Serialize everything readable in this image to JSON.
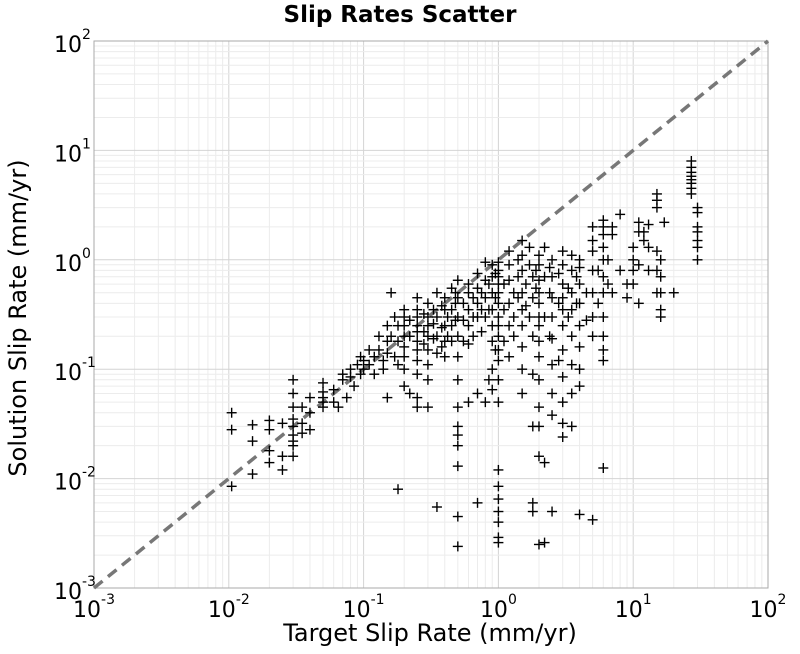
{
  "chart_data": {
    "type": "scatter",
    "title": "Slip Rates Scatter",
    "xlabel": "Target Slip Rate (mm/yr)",
    "ylabel": "Solution Slip Rate (mm/yr)",
    "x_scale": "log",
    "y_scale": "log",
    "xlim": [
      0.001,
      100
    ],
    "ylim": [
      0.001,
      100
    ],
    "grid": true,
    "marker": "plus",
    "marker_color": "#000000",
    "reference_line": {
      "style": "dashed",
      "color": "#777777",
      "from": [
        0.001,
        0.001
      ],
      "to": [
        100,
        100
      ]
    },
    "x_ticks": [
      {
        "base": "10",
        "exp": "-3"
      },
      {
        "base": "10",
        "exp": "-2"
      },
      {
        "base": "10",
        "exp": "-1"
      },
      {
        "base": "10",
        "exp": "0"
      },
      {
        "base": "10",
        "exp": "1"
      },
      {
        "base": "10",
        "exp": "2"
      }
    ],
    "y_ticks": [
      {
        "base": "10",
        "exp": "-3"
      },
      {
        "base": "10",
        "exp": "-2"
      },
      {
        "base": "10",
        "exp": "-1"
      },
      {
        "base": "10",
        "exp": "0"
      },
      {
        "base": "10",
        "exp": "1"
      },
      {
        "base": "10",
        "exp": "2"
      }
    ],
    "points": [
      [
        0.0105,
        0.04
      ],
      [
        0.0105,
        0.028
      ],
      [
        0.0105,
        0.0085
      ],
      [
        0.015,
        0.031
      ],
      [
        0.015,
        0.022
      ],
      [
        0.015,
        0.011
      ],
      [
        0.02,
        0.034
      ],
      [
        0.02,
        0.028
      ],
      [
        0.02,
        0.018
      ],
      [
        0.02,
        0.014
      ],
      [
        0.025,
        0.032
      ],
      [
        0.025,
        0.016
      ],
      [
        0.025,
        0.012
      ],
      [
        0.03,
        0.08
      ],
      [
        0.03,
        0.06
      ],
      [
        0.03,
        0.045
      ],
      [
        0.03,
        0.035
      ],
      [
        0.03,
        0.03
      ],
      [
        0.03,
        0.025
      ],
      [
        0.03,
        0.022
      ],
      [
        0.03,
        0.02
      ],
      [
        0.03,
        0.016
      ],
      [
        0.035,
        0.045
      ],
      [
        0.035,
        0.032
      ],
      [
        0.035,
        0.026
      ],
      [
        0.04,
        0.055
      ],
      [
        0.04,
        0.04
      ],
      [
        0.04,
        0.028
      ],
      [
        0.05,
        0.075
      ],
      [
        0.05,
        0.062
      ],
      [
        0.05,
        0.055
      ],
      [
        0.05,
        0.05
      ],
      [
        0.05,
        0.045
      ],
      [
        0.06,
        0.065
      ],
      [
        0.06,
        0.05
      ],
      [
        0.065,
        0.045
      ],
      [
        0.07,
        0.09
      ],
      [
        0.07,
        0.08
      ],
      [
        0.075,
        0.055
      ],
      [
        0.08,
        0.1
      ],
      [
        0.08,
        0.085
      ],
      [
        0.085,
        0.07
      ],
      [
        0.09,
        0.11
      ],
      [
        0.095,
        0.13
      ],
      [
        0.095,
        0.09
      ],
      [
        0.1,
        0.12
      ],
      [
        0.1,
        0.1
      ],
      [
        0.11,
        0.15
      ],
      [
        0.11,
        0.11
      ],
      [
        0.12,
        0.09
      ],
      [
        0.12,
        0.13
      ],
      [
        0.13,
        0.2
      ],
      [
        0.13,
        0.15
      ],
      [
        0.14,
        0.12
      ],
      [
        0.14,
        0.1
      ],
      [
        0.15,
        0.25
      ],
      [
        0.15,
        0.18
      ],
      [
        0.15,
        0.14
      ],
      [
        0.15,
        0.055
      ],
      [
        0.16,
        0.5
      ],
      [
        0.16,
        0.2
      ],
      [
        0.17,
        0.3
      ],
      [
        0.17,
        0.13
      ],
      [
        0.18,
        0.25
      ],
      [
        0.18,
        0.18
      ],
      [
        0.18,
        0.11
      ],
      [
        0.18,
        0.008
      ],
      [
        0.2,
        0.35
      ],
      [
        0.2,
        0.3
      ],
      [
        0.2,
        0.25
      ],
      [
        0.2,
        0.2
      ],
      [
        0.2,
        0.16
      ],
      [
        0.2,
        0.13
      ],
      [
        0.2,
        0.1
      ],
      [
        0.2,
        0.07
      ],
      [
        0.22,
        0.28
      ],
      [
        0.22,
        0.2
      ],
      [
        0.22,
        0.06
      ],
      [
        0.25,
        0.45
      ],
      [
        0.25,
        0.35
      ],
      [
        0.25,
        0.3
      ],
      [
        0.25,
        0.25
      ],
      [
        0.25,
        0.22
      ],
      [
        0.25,
        0.18
      ],
      [
        0.25,
        0.15
      ],
      [
        0.25,
        0.12
      ],
      [
        0.25,
        0.09
      ],
      [
        0.25,
        0.055
      ],
      [
        0.25,
        0.045
      ],
      [
        0.28,
        0.32
      ],
      [
        0.28,
        0.22
      ],
      [
        0.28,
        0.17
      ],
      [
        0.3,
        0.4
      ],
      [
        0.3,
        0.3
      ],
      [
        0.3,
        0.25
      ],
      [
        0.3,
        0.2
      ],
      [
        0.3,
        0.15
      ],
      [
        0.3,
        0.11
      ],
      [
        0.3,
        0.08
      ],
      [
        0.3,
        0.045
      ],
      [
        0.33,
        0.35
      ],
      [
        0.33,
        0.26
      ],
      [
        0.33,
        0.19
      ],
      [
        0.35,
        0.5
      ],
      [
        0.35,
        0.3
      ],
      [
        0.35,
        0.2
      ],
      [
        0.35,
        0.14
      ],
      [
        0.35,
        0.0055
      ],
      [
        0.38,
        0.38
      ],
      [
        0.38,
        0.24
      ],
      [
        0.38,
        0.16
      ],
      [
        0.4,
        0.45
      ],
      [
        0.4,
        0.35
      ],
      [
        0.4,
        0.25
      ],
      [
        0.4,
        0.18
      ],
      [
        0.4,
        0.13
      ],
      [
        0.42,
        0.3
      ],
      [
        0.42,
        0.2
      ],
      [
        0.45,
        0.55
      ],
      [
        0.45,
        0.35
      ],
      [
        0.45,
        0.25
      ],
      [
        0.45,
        0.18
      ],
      [
        0.48,
        0.5
      ],
      [
        0.48,
        0.4
      ],
      [
        0.48,
        0.28
      ],
      [
        0.5,
        0.65
      ],
      [
        0.5,
        0.45
      ],
      [
        0.5,
        0.3
      ],
      [
        0.5,
        0.2
      ],
      [
        0.5,
        0.13
      ],
      [
        0.5,
        0.08
      ],
      [
        0.5,
        0.045
      ],
      [
        0.5,
        0.03
      ],
      [
        0.5,
        0.025
      ],
      [
        0.5,
        0.02
      ],
      [
        0.5,
        0.013
      ],
      [
        0.5,
        0.0045
      ],
      [
        0.5,
        0.0024
      ],
      [
        0.55,
        0.4
      ],
      [
        0.55,
        0.28
      ],
      [
        0.55,
        0.18
      ],
      [
        0.6,
        0.6
      ],
      [
        0.6,
        0.5
      ],
      [
        0.6,
        0.35
      ],
      [
        0.6,
        0.25
      ],
      [
        0.6,
        0.17
      ],
      [
        0.6,
        0.05
      ],
      [
        0.65,
        0.45
      ],
      [
        0.65,
        0.3
      ],
      [
        0.65,
        0.2
      ],
      [
        0.7,
        0.75
      ],
      [
        0.7,
        0.55
      ],
      [
        0.7,
        0.4
      ],
      [
        0.7,
        0.3
      ],
      [
        0.7,
        0.06
      ],
      [
        0.7,
        0.006
      ],
      [
        0.75,
        0.5
      ],
      [
        0.75,
        0.35
      ],
      [
        0.75,
        0.22
      ],
      [
        0.8,
        0.95
      ],
      [
        0.8,
        0.65
      ],
      [
        0.8,
        0.45
      ],
      [
        0.8,
        0.3
      ],
      [
        0.8,
        0.05
      ],
      [
        0.85,
        0.6
      ],
      [
        0.85,
        0.35
      ],
      [
        0.85,
        0.08
      ],
      [
        0.9,
        0.9
      ],
      [
        0.9,
        0.7
      ],
      [
        0.9,
        0.5
      ],
      [
        0.9,
        0.35
      ],
      [
        0.9,
        0.25
      ],
      [
        0.9,
        0.18
      ],
      [
        0.9,
        0.1
      ],
      [
        0.9,
        0.065
      ],
      [
        0.95,
        0.75
      ],
      [
        0.95,
        0.45
      ],
      [
        0.95,
        0.15
      ],
      [
        1.0,
        0.95
      ],
      [
        1.0,
        0.8
      ],
      [
        1.0,
        0.7
      ],
      [
        1.0,
        0.6
      ],
      [
        1.0,
        0.5
      ],
      [
        1.0,
        0.4
      ],
      [
        1.0,
        0.3
      ],
      [
        1.0,
        0.25
      ],
      [
        1.0,
        0.2
      ],
      [
        1.0,
        0.15
      ],
      [
        1.0,
        0.12
      ],
      [
        1.0,
        0.08
      ],
      [
        1.0,
        0.05
      ],
      [
        1.0,
        0.012
      ],
      [
        1.0,
        0.0085
      ],
      [
        1.0,
        0.0065
      ],
      [
        1.0,
        0.005
      ],
      [
        1.0,
        0.004
      ],
      [
        1.0,
        0.0029
      ],
      [
        1.0,
        0.0026
      ],
      [
        1.1,
        0.6
      ],
      [
        1.1,
        0.35
      ],
      [
        1.1,
        0.18
      ],
      [
        1.2,
        1.2
      ],
      [
        1.2,
        0.9
      ],
      [
        1.2,
        0.65
      ],
      [
        1.2,
        0.4
      ],
      [
        1.2,
        0.25
      ],
      [
        1.2,
        0.13
      ],
      [
        1.3,
        0.5
      ],
      [
        1.3,
        0.3
      ],
      [
        1.3,
        0.2
      ],
      [
        1.4,
        1.0
      ],
      [
        1.4,
        0.7
      ],
      [
        1.4,
        0.45
      ],
      [
        1.5,
        1.5
      ],
      [
        1.5,
        1.1
      ],
      [
        1.5,
        0.8
      ],
      [
        1.5,
        0.5
      ],
      [
        1.5,
        0.35
      ],
      [
        1.5,
        0.25
      ],
      [
        1.5,
        0.16
      ],
      [
        1.5,
        0.1
      ],
      [
        1.5,
        0.06
      ],
      [
        1.6,
        0.6
      ],
      [
        1.6,
        0.38
      ],
      [
        1.7,
        1.3
      ],
      [
        1.7,
        0.9
      ],
      [
        1.7,
        0.3
      ],
      [
        1.8,
        0.7
      ],
      [
        1.8,
        0.45
      ],
      [
        1.8,
        0.2
      ],
      [
        1.8,
        0.09
      ],
      [
        1.8,
        0.03
      ],
      [
        1.8,
        0.006
      ],
      [
        1.8,
        0.005
      ],
      [
        1.9,
        0.8
      ],
      [
        1.9,
        0.55
      ],
      [
        2.0,
        1.1
      ],
      [
        2.0,
        0.9
      ],
      [
        2.0,
        0.65
      ],
      [
        2.0,
        0.5
      ],
      [
        2.0,
        0.4
      ],
      [
        2.0,
        0.3
      ],
      [
        2.0,
        0.25
      ],
      [
        2.0,
        0.18
      ],
      [
        2.0,
        0.13
      ],
      [
        2.0,
        0.08
      ],
      [
        2.0,
        0.045
      ],
      [
        2.0,
        0.03
      ],
      [
        2.0,
        0.016
      ],
      [
        2.0,
        0.0025
      ],
      [
        2.2,
        1.3
      ],
      [
        2.2,
        0.7
      ],
      [
        2.2,
        0.3
      ],
      [
        2.2,
        0.014
      ],
      [
        2.2,
        0.0026
      ],
      [
        2.4,
        0.85
      ],
      [
        2.4,
        0.5
      ],
      [
        2.4,
        0.2
      ],
      [
        2.5,
        1.0
      ],
      [
        2.5,
        0.7
      ],
      [
        2.5,
        0.45
      ],
      [
        2.5,
        0.3
      ],
      [
        2.5,
        0.19
      ],
      [
        2.5,
        0.11
      ],
      [
        2.5,
        0.06
      ],
      [
        2.5,
        0.038
      ],
      [
        2.5,
        0.005
      ],
      [
        2.8,
        0.75
      ],
      [
        2.8,
        0.4
      ],
      [
        2.8,
        0.12
      ],
      [
        3.0,
        1.2
      ],
      [
        3.0,
        0.9
      ],
      [
        3.0,
        0.6
      ],
      [
        3.0,
        0.45
      ],
      [
        3.0,
        0.35
      ],
      [
        3.0,
        0.25
      ],
      [
        3.0,
        0.15
      ],
      [
        3.0,
        0.085
      ],
      [
        3.0,
        0.05
      ],
      [
        3.0,
        0.032
      ],
      [
        3.0,
        0.024
      ],
      [
        3.3,
        0.55
      ],
      [
        3.3,
        0.3
      ],
      [
        3.5,
        1.1
      ],
      [
        3.5,
        0.8
      ],
      [
        3.5,
        0.5
      ],
      [
        3.5,
        0.35
      ],
      [
        3.5,
        0.2
      ],
      [
        3.5,
        0.11
      ],
      [
        3.5,
        0.06
      ],
      [
        3.5,
        0.03
      ],
      [
        3.8,
        0.7
      ],
      [
        3.8,
        0.4
      ],
      [
        4.0,
        1.0
      ],
      [
        4.0,
        0.85
      ],
      [
        4.0,
        0.6
      ],
      [
        4.0,
        0.4
      ],
      [
        4.0,
        0.25
      ],
      [
        4.0,
        0.16
      ],
      [
        4.0,
        0.1
      ],
      [
        4.0,
        0.07
      ],
      [
        4.0,
        0.0047
      ],
      [
        4.5,
        0.5
      ],
      [
        4.5,
        0.28
      ],
      [
        5.0,
        2.0
      ],
      [
        5.0,
        1.5
      ],
      [
        5.0,
        1.2
      ],
      [
        5.0,
        0.8
      ],
      [
        5.0,
        0.5
      ],
      [
        5.0,
        0.3
      ],
      [
        5.0,
        0.2
      ],
      [
        5.0,
        0.0042
      ],
      [
        5.5,
        0.8
      ],
      [
        5.5,
        0.4
      ],
      [
        6.0,
        2.3
      ],
      [
        6.0,
        2.0
      ],
      [
        6.0,
        1.7
      ],
      [
        6.0,
        1.3
      ],
      [
        6.0,
        1.0
      ],
      [
        6.0,
        0.7
      ],
      [
        6.0,
        0.5
      ],
      [
        6.0,
        0.3
      ],
      [
        6.0,
        0.2
      ],
      [
        6.0,
        0.15
      ],
      [
        6.0,
        0.12
      ],
      [
        6.0,
        0.0125
      ],
      [
        6.5,
        1.0
      ],
      [
        6.5,
        0.6
      ],
      [
        7.0,
        2.0
      ],
      [
        7.0,
        1.7
      ],
      [
        7.0,
        0.5
      ],
      [
        8.0,
        2.6
      ],
      [
        8.0,
        0.8
      ],
      [
        9.0,
        0.6
      ],
      [
        9.0,
        0.45
      ],
      [
        10.0,
        1.3
      ],
      [
        10.0,
        1.0
      ],
      [
        10.0,
        0.8
      ],
      [
        10.0,
        0.6
      ],
      [
        11.0,
        2.2
      ],
      [
        11.0,
        1.8
      ],
      [
        11.0,
        0.9
      ],
      [
        11.0,
        0.4
      ],
      [
        12.0,
        1.8
      ],
      [
        12.0,
        1.5
      ],
      [
        13.0,
        2.1
      ],
      [
        13.0,
        1.3
      ],
      [
        13.0,
        0.8
      ],
      [
        15.0,
        4.0
      ],
      [
        15.0,
        3.5
      ],
      [
        15.0,
        3.0
      ],
      [
        15.0,
        1.2
      ],
      [
        15.0,
        0.8
      ],
      [
        15.0,
        0.5
      ],
      [
        16.0,
        1.0
      ],
      [
        16.0,
        0.7
      ],
      [
        16.0,
        0.5
      ],
      [
        16.0,
        0.35
      ],
      [
        16.0,
        0.3
      ],
      [
        17.0,
        2.2
      ],
      [
        20.0,
        0.5
      ],
      [
        27.0,
        8.0
      ],
      [
        27.0,
        7.0
      ],
      [
        27.0,
        6.3
      ],
      [
        27.0,
        5.8
      ],
      [
        27.0,
        5.4
      ],
      [
        27.0,
        5.0
      ],
      [
        27.0,
        4.5
      ],
      [
        27.0,
        4.0
      ],
      [
        30.0,
        3.0
      ],
      [
        30.0,
        2.7
      ],
      [
        30.0,
        2.0
      ],
      [
        30.0,
        1.8
      ],
      [
        30.0,
        1.5
      ],
      [
        30.0,
        1.3
      ],
      [
        30.0,
        1.0
      ]
    ]
  }
}
